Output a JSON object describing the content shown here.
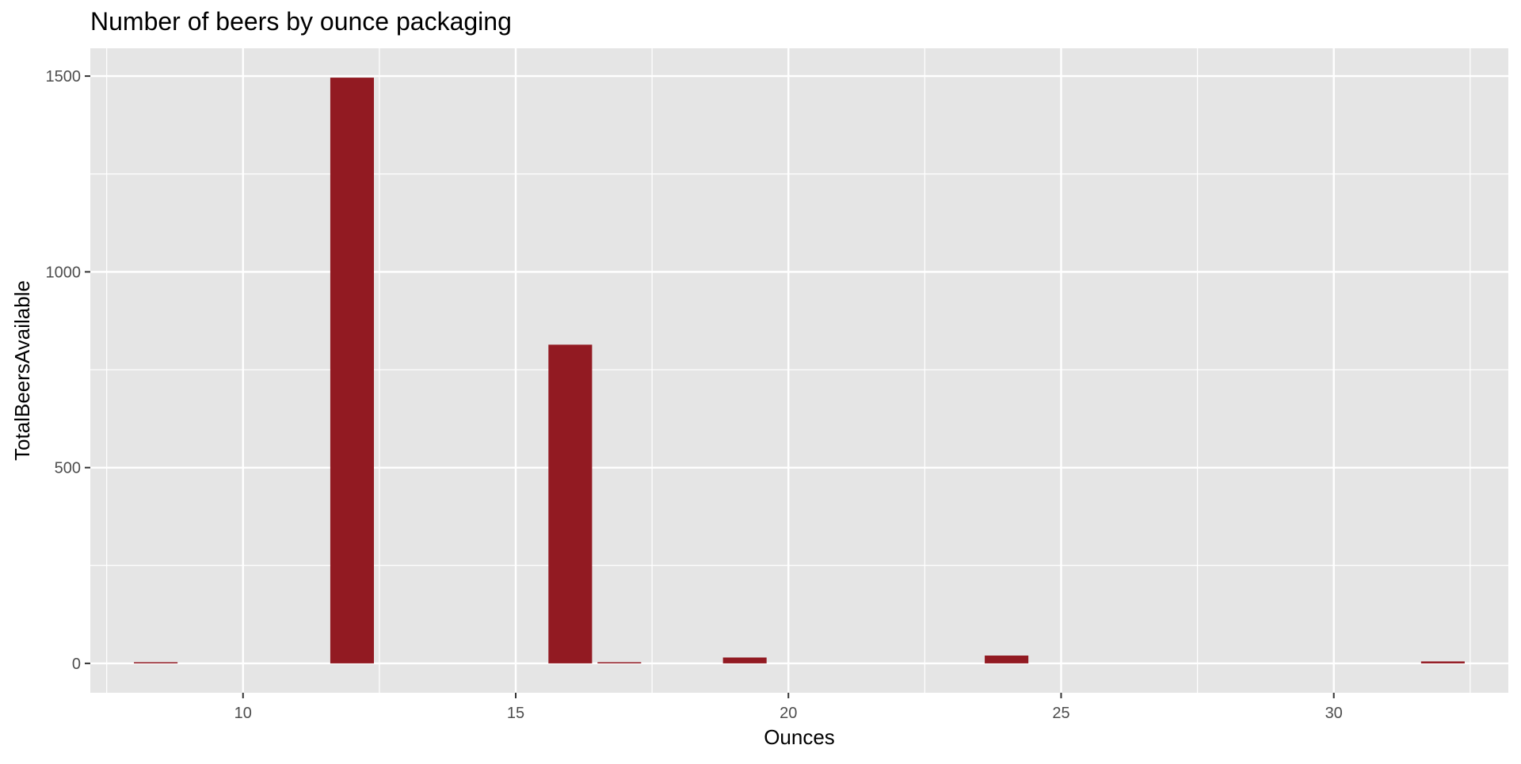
{
  "chart_data": {
    "type": "bar",
    "title": "Number of beers by ounce packaging",
    "xlabel": "Ounces",
    "ylabel": "TotalBeersAvailable",
    "x": [
      8.4,
      12,
      16,
      16.9,
      19.2,
      24,
      32
    ],
    "values": [
      1,
      1496,
      814,
      1,
      15,
      20,
      5
    ],
    "bar_width": 0.8,
    "xlim": [
      7.2,
      33.2
    ],
    "ylim": [
      -75,
      1571
    ],
    "x_ticks": [
      10,
      15,
      20,
      25,
      30
    ],
    "y_ticks": [
      0,
      500,
      1000,
      1500
    ],
    "x_minor_ticks": [
      7.5,
      12.5,
      17.5,
      22.5,
      27.5,
      32.5
    ],
    "y_minor_ticks": [
      250,
      750,
      1250
    ],
    "grid": true,
    "colors": {
      "bar": "#921a22",
      "panel": "#e5e5e5",
      "grid": "#ffffff",
      "text": "#000000",
      "tick_text": "#4d4d4d"
    }
  }
}
